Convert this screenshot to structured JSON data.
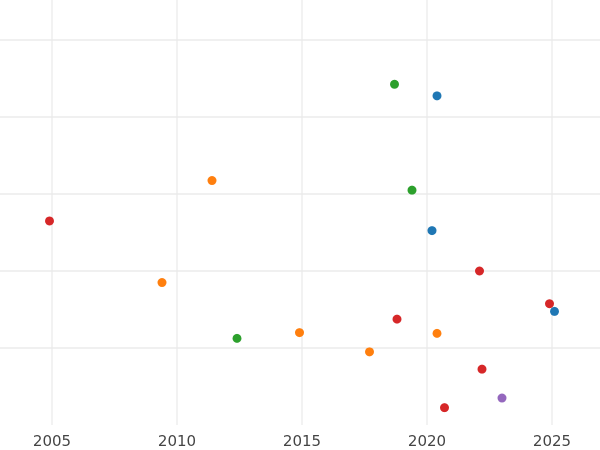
{
  "chart_data": {
    "type": "scatter",
    "title": "",
    "xlabel": "",
    "ylabel": "",
    "xlim": [
      2004,
      2027
    ],
    "ylim": [
      0,
      11
    ],
    "grid": true,
    "legend": "none",
    "x_ticks": [
      2005,
      2010,
      2015,
      2020,
      2025
    ],
    "x_tick_labels": [
      "2005",
      "2010",
      "2015",
      "2020",
      "2025"
    ],
    "y_gridlines": [
      2,
      4,
      6,
      8,
      10
    ],
    "series": [
      {
        "color": "#1f77b4",
        "points": [
          {
            "x": 2020.4,
            "y": 8.55
          },
          {
            "x": 2020.2,
            "y": 5.05
          },
          {
            "x": 2025.1,
            "y": 2.95
          }
        ]
      },
      {
        "color": "#ff7f0e",
        "points": [
          {
            "x": 2011.4,
            "y": 6.35
          },
          {
            "x": 2009.4,
            "y": 3.7
          },
          {
            "x": 2014.9,
            "y": 2.4
          },
          {
            "x": 2017.7,
            "y": 1.9
          },
          {
            "x": 2020.4,
            "y": 2.38
          }
        ]
      },
      {
        "color": "#2ca02c",
        "points": [
          {
            "x": 2018.7,
            "y": 8.85
          },
          {
            "x": 2019.4,
            "y": 6.1
          },
          {
            "x": 2012.4,
            "y": 2.25
          }
        ]
      },
      {
        "color": "#d62728",
        "points": [
          {
            "x": 2004.9,
            "y": 5.3
          },
          {
            "x": 2022.1,
            "y": 4.0
          },
          {
            "x": 2024.9,
            "y": 3.15
          },
          {
            "x": 2018.8,
            "y": 2.75
          },
          {
            "x": 2022.2,
            "y": 1.45
          },
          {
            "x": 2020.7,
            "y": 0.45
          }
        ]
      },
      {
        "color": "#9467bd",
        "points": [
          {
            "x": 2023.0,
            "y": 0.7
          }
        ]
      }
    ]
  }
}
